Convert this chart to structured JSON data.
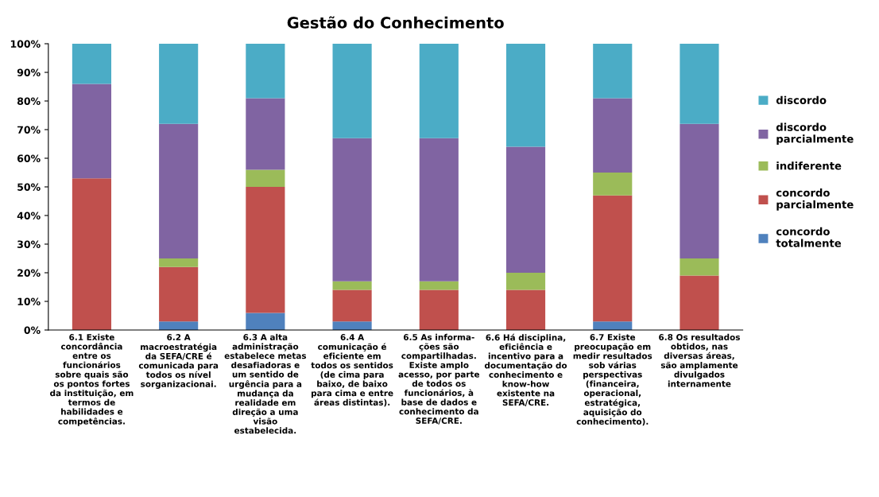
{
  "chart_data": {
    "type": "bar",
    "title": "Gestão do Conhecimento",
    "stacked": true,
    "legend": "right",
    "grid": false,
    "categories": [
      "6.1 Existe\nconcordância\nentre os\nfuncionários\nsobre quais são\nos pontos fortes\nda instituição, em\ntermos de\nhabilidades e\ncompetências.",
      "6.2 A\nmacroestratégia\nda SEFA/CRE é\ncomunicada para\ntodos os nível\nsorganizacionai.",
      "6.3 A alta\nadministração\nestabelece metas\ndesafiadoras e\num sentido de\nurgência para a\nmudança da\nrealidade em\ndireção a uma\nvisão\nestabelecida.",
      "6.4 A\ncomunicação é\neficiente em\ntodos os sentidos\n(de cima para\nbaixo, de baixo\npara cima e entre\náreas distintas).",
      "6.5 As informa-\nções são\ncompartilhadas.\nExiste amplo\nacesso, por parte\nde todos os\nfuncionários, à\nbase de dados e\nconhecimento da\nSEFA/CRE.",
      "6.6 Há disciplina,\neficiência e\nincentivo para a\ndocumentação do\nconhecimento e\nknow-how\nexistente na\nSEFA/CRE.",
      "6.7 Existe\npreocupação em\nmedir resultados\nsob várias\nperspectivas\n(financeira,\noperacional,\nestratégica,\naquisição do\nconhecimento).",
      "6.8 Os resultados\nobtidos, nas\ndiversas áreas,\nsão amplamente\ndivulgados\ninternamente"
    ],
    "series": [
      {
        "name": "concordo\ntotalmente",
        "color": "#4f81bd",
        "values": [
          0,
          3,
          6,
          3,
          0,
          0,
          3,
          0
        ]
      },
      {
        "name": "concordo\nparcialmente",
        "color": "#c0504d",
        "values": [
          53,
          19,
          44,
          11,
          14,
          14,
          44,
          19
        ]
      },
      {
        "name": "indiferente",
        "color": "#9bbb59",
        "values": [
          0,
          3,
          6,
          3,
          3,
          6,
          8,
          6
        ]
      },
      {
        "name": "discordo\nparcialmente",
        "color": "#8064a2",
        "values": [
          33,
          47,
          25,
          50,
          50,
          44,
          26,
          47
        ]
      },
      {
        "name": "discordo",
        "color": "#4bacc6",
        "values": [
          14,
          28,
          19,
          33,
          33,
          36,
          19,
          28
        ]
      }
    ],
    "ylim": [
      0,
      100
    ],
    "yticks": [
      {
        "value": 0,
        "label": "0%"
      },
      {
        "value": 10,
        "label": "10%"
      },
      {
        "value": 20,
        "label": "20%"
      },
      {
        "value": 30,
        "label": "30%"
      },
      {
        "value": 40,
        "label": "40%"
      },
      {
        "value": 50,
        "label": "50%"
      },
      {
        "value": 60,
        "label": "60%"
      },
      {
        "value": 70,
        "label": "70%"
      },
      {
        "value": 80,
        "label": "80%"
      },
      {
        "value": 90,
        "label": "90%"
      },
      {
        "value": 100,
        "label": "100%"
      }
    ]
  }
}
